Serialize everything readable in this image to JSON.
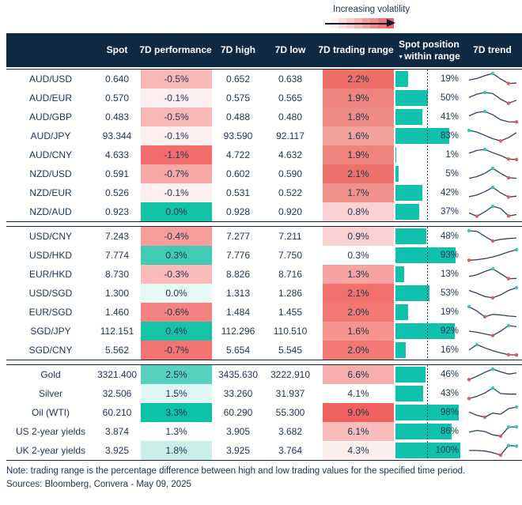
{
  "legend": {
    "label": "Increasing volatility"
  },
  "header": {
    "spot": "Spot",
    "performance": "7D performance",
    "high": "7D high",
    "low": "7D low",
    "range": "7D trading range",
    "position_line1": "Spot position",
    "position_line2": "within range",
    "sort_indicator": "▼",
    "trend": "7D trend"
  },
  "colors": {
    "header_bg": "#0f2943",
    "text": "#1f3353",
    "bar_teal": "#10c2ae",
    "spark_line": "#2e4160",
    "dot_high": "#35c7b0",
    "dot_low": "#e05b52",
    "legend_red": "#ec655f"
  },
  "blocks": [
    {
      "rows": [
        {
          "label": "AUD/USD",
          "spot": "0.640",
          "perf": "-0.5%",
          "perf_bg": "#f8b8b6",
          "high": "0.652",
          "low": "0.638",
          "range": "2.2%",
          "range_bg": "#ec6e66",
          "pos": "19%",
          "pos_pct": 19,
          "spark": {
            "v": [
              0.4,
              0.55,
              0.8,
              1.0,
              0.5,
              0.1,
              0.14
            ],
            "teal": [
              3
            ],
            "red": [
              5
            ]
          }
        },
        {
          "label": "AUD/EUR",
          "spot": "0.570",
          "perf": "-0.1%",
          "perf_bg": "#fdeff0",
          "high": "0.575",
          "low": "0.565",
          "range": "1.9%",
          "range_bg": "#ef837d",
          "pos": "50%",
          "pos_pct": 50,
          "spark": {
            "v": [
              0.55,
              0.85,
              1.0,
              0.9,
              0.4,
              0.02,
              0.3
            ],
            "teal": [
              2
            ],
            "red": [
              5
            ]
          }
        },
        {
          "label": "AUD/GBP",
          "spot": "0.483",
          "perf": "-0.5%",
          "perf_bg": "#f8b8b6",
          "high": "0.488",
          "low": "0.480",
          "range": "1.8%",
          "range_bg": "#ef8b85",
          "pos": "41%",
          "pos_pct": 41,
          "spark": {
            "v": [
              0.6,
              0.9,
              1.0,
              0.7,
              0.25,
              0.06,
              0.05
            ],
            "teal": [
              2
            ],
            "red": [
              6
            ]
          }
        },
        {
          "label": "AUD/JPY",
          "spot": "93.344",
          "perf": "-0.1%",
          "perf_bg": "#fdeff0",
          "high": "93.590",
          "low": "92.117",
          "range": "1.6%",
          "range_bg": "#f2a19c",
          "pos": "83%",
          "pos_pct": 83,
          "spark": {
            "v": [
              1.0,
              0.85,
              0.55,
              0.25,
              0.05,
              0.35,
              0.8
            ],
            "teal": [
              0
            ],
            "red": [
              4
            ]
          }
        },
        {
          "label": "AUD/CNY",
          "spot": "4.633",
          "perf": "-1.1%",
          "perf_bg": "#f26d6c",
          "high": "4.722",
          "low": "4.632",
          "range": "1.9%",
          "range_bg": "#ef837d",
          "pos": "1%",
          "pos_pct": 1,
          "spark": {
            "v": [
              0.65,
              0.9,
              1.0,
              0.7,
              0.45,
              0.12,
              0.08
            ],
            "teal": [
              2
            ],
            "red": [
              5,
              6
            ]
          }
        },
        {
          "label": "NZD/USD",
          "spot": "0.591",
          "perf": "-0.7%",
          "perf_bg": "#f7a7a5",
          "high": "0.602",
          "low": "0.590",
          "range": "2.1%",
          "range_bg": "#ec736c",
          "pos": "5%",
          "pos_pct": 5,
          "spark": {
            "v": [
              0.1,
              0.25,
              0.55,
              1.0,
              0.55,
              0.15,
              0.1
            ],
            "teal": [
              3
            ],
            "red": [
              5
            ]
          }
        },
        {
          "label": "NZD/EUR",
          "spot": "0.526",
          "perf": "-0.1%",
          "perf_bg": "#fdeff0",
          "high": "0.531",
          "low": "0.522",
          "range": "1.7%",
          "range_bg": "#f1928d",
          "pos": "42%",
          "pos_pct": 42,
          "spark": {
            "v": [
              0.15,
              0.3,
              0.6,
              1.0,
              0.5,
              0.12,
              0.2
            ],
            "teal": [
              3
            ],
            "red": [
              5
            ]
          }
        },
        {
          "label": "NZD/AUD",
          "spot": "0.923",
          "perf": "0.0%",
          "perf_bg": "#13c3a6",
          "high": "0.928",
          "low": "0.920",
          "range": "0.8%",
          "range_bg": "#fad2d1",
          "pos": "37%",
          "pos_pct": 37,
          "spark": {
            "v": [
              0.4,
              0.1,
              0.5,
              1.0,
              0.8,
              0.12,
              0.25
            ],
            "teal": [
              3
            ],
            "red": [
              1,
              5
            ]
          }
        }
      ]
    },
    {
      "rows": [
        {
          "label": "USD/CNY",
          "spot": "7.243",
          "perf": "-0.4%",
          "perf_bg": "#f79e9d",
          "high": "7.277",
          "low": "7.211",
          "range": "0.9%",
          "range_bg": "#fad1d0",
          "pos": "48%",
          "pos_pct": 48,
          "spark": {
            "v": [
              1.0,
              0.95,
              0.5,
              0.08,
              0.22,
              0.3,
              0.35
            ],
            "teal": [
              0
            ],
            "red": [
              3
            ]
          }
        },
        {
          "label": "USD/HKD",
          "spot": "7.774",
          "perf": "0.3%",
          "perf_bg": "#41cbb5",
          "high": "7.776",
          "low": "7.750",
          "range": "0.3%",
          "range_bg": "#ffffff",
          "pos": "93%",
          "pos_pct": 93,
          "spark": {
            "v": [
              0.05,
              0.1,
              0.2,
              0.35,
              0.55,
              0.8,
              1.0
            ],
            "teal": [
              6
            ],
            "red": [
              0
            ]
          }
        },
        {
          "label": "EUR/HKD",
          "spot": "8.730",
          "perf": "-0.3%",
          "perf_bg": "#f9bab9",
          "high": "8.826",
          "low": "8.716",
          "range": "1.3%",
          "range_bg": "#f7a3a1",
          "pos": "13%",
          "pos_pct": 13,
          "spark": {
            "v": [
              0.3,
              0.45,
              0.75,
              1.0,
              0.55,
              0.1,
              0.12
            ],
            "teal": [
              3
            ],
            "red": [
              5
            ]
          }
        },
        {
          "label": "USD/SGD",
          "spot": "1.300",
          "perf": "0.0%",
          "perf_bg": "#e8f8f5",
          "high": "1.313",
          "low": "1.286",
          "range": "2.1%",
          "range_bg": "#f2716e",
          "pos": "53%",
          "pos_pct": 53,
          "spark": {
            "v": [
              0.75,
              0.5,
              0.2,
              0.08,
              0.35,
              0.75,
              1.0
            ],
            "teal": [
              6
            ],
            "red": [
              3
            ]
          }
        },
        {
          "label": "EUR/SGD",
          "spot": "1.460",
          "perf": "-0.6%",
          "perf_bg": "#f58280",
          "high": "1.484",
          "low": "1.455",
          "range": "2.0%",
          "range_bg": "#f27874",
          "pos": "19%",
          "pos_pct": 19,
          "spark": {
            "v": [
              1.0,
              0.6,
              0.08,
              0.3,
              0.25,
              0.15,
              0.1
            ],
            "teal": [
              0
            ],
            "red": [
              2
            ]
          }
        },
        {
          "label": "SGD/JPY",
          "spot": "112.151",
          "perf": "0.4%",
          "perf_bg": "#17c4a7",
          "high": "112.296",
          "low": "110.510",
          "range": "1.6%",
          "range_bg": "#f5938f",
          "pos": "92%",
          "pos_pct": 92,
          "spark": {
            "v": [
              0.5,
              0.4,
              0.25,
              0.1,
              0.5,
              1.0,
              0.9
            ],
            "teal": [
              5
            ],
            "red": [
              3
            ]
          }
        },
        {
          "label": "SGD/CNY",
          "spot": "5.562",
          "perf": "-0.7%",
          "perf_bg": "#f47472",
          "high": "5.654",
          "low": "5.545",
          "range": "2.0%",
          "range_bg": "#f27874",
          "pos": "16%",
          "pos_pct": 16,
          "spark": {
            "v": [
              0.5,
              1.0,
              0.7,
              0.45,
              0.25,
              0.08,
              0.06
            ],
            "teal": [
              1
            ],
            "red": [
              5,
              6
            ]
          }
        }
      ]
    },
    {
      "rows": [
        {
          "label": "Gold",
          "spot": "3321.400",
          "perf": "2.5%",
          "perf_bg": "#57d1bd",
          "high": "3435.630",
          "low": "3222.910",
          "range": "6.6%",
          "range_bg": "#f6aeac",
          "pos": "46%",
          "pos_pct": 46,
          "spark": {
            "v": [
              0.05,
              0.35,
              0.7,
              1.0,
              0.75,
              0.55,
              0.65
            ],
            "teal": [
              3
            ],
            "red": [
              0
            ]
          }
        },
        {
          "label": "Silver",
          "spot": "32.506",
          "perf": "1.5%",
          "perf_bg": "#e0f6f2",
          "high": "33.260",
          "low": "31.937",
          "range": "4.1%",
          "range_bg": "#ffffff",
          "pos": "43%",
          "pos_pct": 43,
          "spark": {
            "v": [
              0.05,
              0.25,
              0.55,
              1.0,
              0.5,
              0.45,
              0.45
            ],
            "teal": [
              3
            ],
            "red": [
              0
            ]
          }
        },
        {
          "label": "Oil (WTI)",
          "spot": "60.210",
          "perf": "3.3%",
          "perf_bg": "#0dc3a6",
          "high": "60.290",
          "low": "55.300",
          "range": "9.0%",
          "range_bg": "#f0625f",
          "pos": "98%",
          "pos_pct": 98,
          "spark": {
            "v": [
              0.55,
              0.25,
              0.08,
              0.45,
              0.35,
              0.85,
              1.0
            ],
            "teal": [
              6
            ],
            "red": [
              2
            ]
          }
        },
        {
          "label": "US 2-year yields",
          "spot": "3.874",
          "perf": "1.3%",
          "perf_bg": "#ffffff",
          "high": "3.905",
          "low": "3.682",
          "range": "6.1%",
          "range_bg": "#f8bcba",
          "pos": "86%",
          "pos_pct": 86,
          "spark": {
            "v": [
              0.45,
              0.6,
              0.5,
              0.2,
              0.08,
              0.9,
              0.92
            ],
            "teal": [
              5,
              6
            ],
            "red": [
              4
            ]
          }
        },
        {
          "label": "UK 2-year yields",
          "spot": "3.925",
          "perf": "1.8%",
          "perf_bg": "#c9efe8",
          "high": "3.925",
          "low": "3.764",
          "range": "4.3%",
          "range_bg": "#fdeeee",
          "pos": "100%",
          "pos_pct": 100,
          "spark": {
            "v": [
              0.5,
              0.5,
              0.45,
              0.3,
              0.08,
              0.95,
              0.9
            ],
            "teal": [
              5,
              6
            ],
            "red": [
              4
            ]
          }
        }
      ]
    }
  ],
  "footer": {
    "note": "Note: trading range is the percentage difference between high and low trading values for the specified time period.",
    "sources": "Sources: Bloomberg, Convera - May 09, 2025"
  }
}
